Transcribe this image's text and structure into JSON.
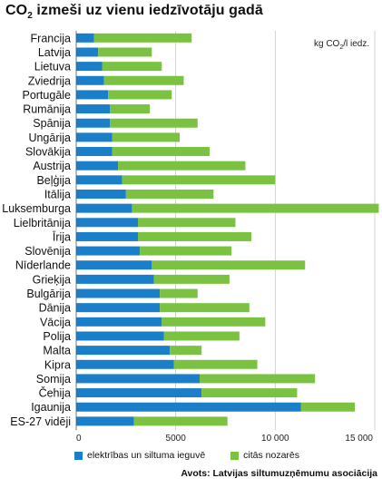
{
  "title_main": "CO",
  "title_sub": "2",
  "title_rest": " izmeši uz vienu iedzīvotāju gadā",
  "unit_label_main": "kg CO",
  "unit_label_sub": "2",
  "unit_label_rest": "/l iedz.",
  "source": "Avots: Latvijas siltumuzņēmumu asociācija",
  "colors": {
    "electricity": "#1a7ec8",
    "other": "#7cc242"
  },
  "chart_data": {
    "type": "bar",
    "orientation": "horizontal",
    "stacked": true,
    "categories": [
      "Francija",
      "Latvija",
      "Lietuva",
      "Zviedrija",
      "Portugāle",
      "Rumānija",
      "Spānija",
      "Ungārija",
      "Slovākija",
      "Austrija",
      "Beļģija",
      "Itālija",
      "Luksemburga",
      "Lielbritānija",
      "Īrija",
      "Slovēnija",
      "Nīderlande",
      "Grieķija",
      "Bulgārija",
      "Dānija",
      "Vācija",
      "Polija",
      "Malta",
      "Kipra",
      "Somija",
      "Čehija",
      "Igaunija",
      "ES-27 vidēji"
    ],
    "series": [
      {
        "name": "elektrības un siltuma ieguvē",
        "values": [
          900,
          1100,
          1300,
          1400,
          1600,
          1700,
          1700,
          1800,
          1800,
          2100,
          2300,
          2500,
          2800,
          3100,
          3100,
          3200,
          3800,
          3900,
          4200,
          4200,
          4300,
          4400,
          4700,
          4900,
          6200,
          6300,
          11300,
          2900
        ]
      },
      {
        "name": "citās nozarēs",
        "values": [
          4900,
          2700,
          3000,
          4000,
          3200,
          2000,
          4400,
          3400,
          4900,
          6400,
          7700,
          4400,
          12400,
          4900,
          5700,
          4600,
          7700,
          3800,
          1900,
          4500,
          5200,
          3800,
          1600,
          4200,
          5800,
          4800,
          2700,
          4700
        ]
      }
    ],
    "xlim": [
      0,
      15000
    ],
    "xticks": [
      0,
      5000,
      10000,
      15000
    ],
    "xtick_labels": [
      "0",
      "5000",
      "10 000",
      "15 000"
    ],
    "grid": true,
    "legend_position": "bottom"
  }
}
